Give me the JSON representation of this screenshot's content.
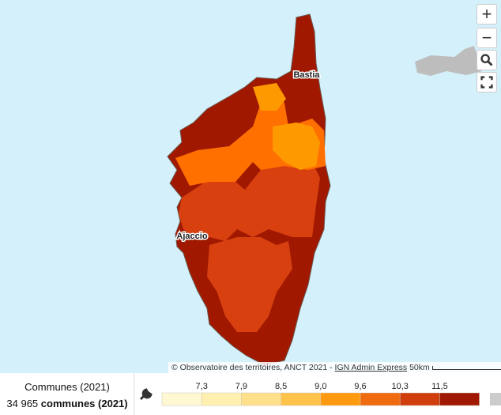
{
  "labels": [
    "Bastia",
    "Ajaccio"
  ],
  "controls": {
    "zoom_in": "+",
    "zoom_out": "−"
  },
  "attribution": {
    "text": "© Observatoire des territoires, ANCT 2021 - ",
    "link": "IGN Admin Express",
    "scale": "50km"
  },
  "panel": {
    "title": "Communes (2021)",
    "count": "34 965",
    "unit": "communes (2021)"
  },
  "legend": {
    "thresholds": [
      "7,3",
      "7,9",
      "8,5",
      "9,0",
      "9,6",
      "10,3",
      "11,5"
    ],
    "colors": [
      "#fff8d2",
      "#fff0b0",
      "#ffe08a",
      "#ffc34a",
      "#ff9a10",
      "#f06a10",
      "#cf3e0c",
      "#a01800"
    ]
  }
}
